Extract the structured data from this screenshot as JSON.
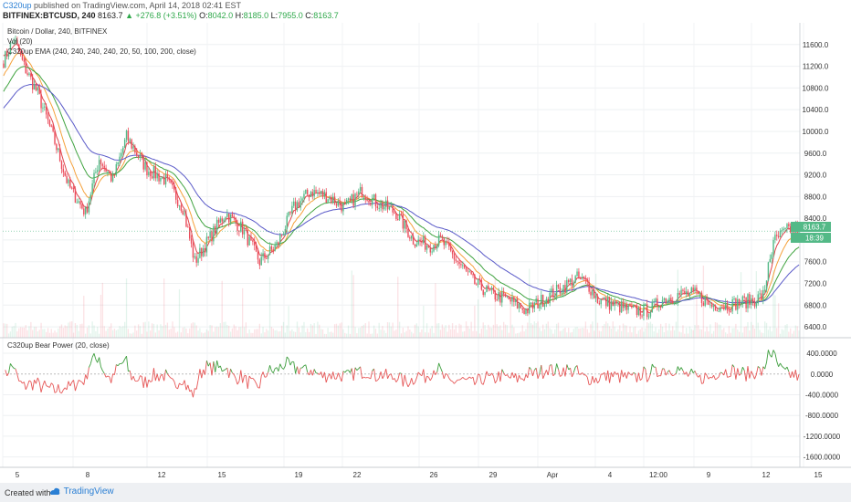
{
  "header": {
    "author": "C320up",
    "published_text": "published on TradingView.com, April 14, 2018 02:41 EST",
    "symbol": "BITFINEX:BTCUSD, 240",
    "last": "8163.7",
    "change": "▲ +276.8 (+3.51%)",
    "o_label": "O:",
    "o": "8042.0",
    "h_label": "H:",
    "h": "8185.0",
    "l_label": "L:",
    "l": "7955.0",
    "c_label": "C:",
    "c": "8163.7"
  },
  "legend": {
    "title": "Bitcoin / Dollar, 240, BITFINEX",
    "volume": "Vol (20)",
    "ema": "C320up EMA (240, 240, 240, 240, 20, 50, 100, 200, close)",
    "indicator": "C320up Bear Power (20, close)"
  },
  "badges": {
    "price": "8163.7",
    "countdown": "18:39"
  },
  "footer": {
    "created": "Created with",
    "brand": "TradingView"
  },
  "colors": {
    "up": "#53b987",
    "down": "#eb4d5c",
    "ema20": "#e0434a",
    "ema50": "#f5a13b",
    "ema100": "#3fa33f",
    "ema200": "#5a5ac8",
    "bear_pos": "#3f9f3f",
    "bear_neg": "#e65757"
  },
  "chart_data": [
    {
      "type": "candlestick",
      "title": "Bitcoin / Dollar, 240, BITFINEX",
      "ylim": [
        6200,
        12000
      ],
      "y_ticks": [
        "11600.0",
        "11200.0",
        "10800.0",
        "10400.0",
        "10000.0",
        "9600.0",
        "9200.0",
        "8800.0",
        "8400.0",
        "8000.0",
        "7600.0",
        "7200.0",
        "6800.0",
        "6400.0"
      ],
      "x_ticks": [
        "5",
        "8",
        "12",
        "15",
        "19",
        "22",
        "26",
        "29",
        "Apr",
        "4",
        "12:00",
        "9",
        "12",
        "15"
      ],
      "close_anchors": [
        [
          0,
          11300
        ],
        [
          6,
          11700
        ],
        [
          12,
          11200
        ],
        [
          20,
          10700
        ],
        [
          28,
          10000
        ],
        [
          38,
          9000
        ],
        [
          48,
          8500
        ],
        [
          56,
          9500
        ],
        [
          64,
          9100
        ],
        [
          72,
          9900
        ],
        [
          84,
          9300
        ],
        [
          95,
          9100
        ],
        [
          105,
          8600
        ],
        [
          112,
          7600
        ],
        [
          122,
          8100
        ],
        [
          130,
          8500
        ],
        [
          140,
          8200
        ],
        [
          150,
          7600
        ],
        [
          160,
          7900
        ],
        [
          170,
          8600
        ],
        [
          180,
          8900
        ],
        [
          190,
          8800
        ],
        [
          200,
          8600
        ],
        [
          210,
          8900
        ],
        [
          218,
          8700
        ],
        [
          230,
          8500
        ],
        [
          240,
          8000
        ],
        [
          250,
          7900
        ],
        [
          256,
          8000
        ],
        [
          266,
          7600
        ],
        [
          276,
          7200
        ],
        [
          286,
          7000
        ],
        [
          296,
          6900
        ],
        [
          306,
          6700
        ],
        [
          316,
          6900
        ],
        [
          326,
          7100
        ],
        [
          336,
          7300
        ],
        [
          342,
          7200
        ],
        [
          348,
          6900
        ],
        [
          358,
          6800
        ],
        [
          368,
          6700
        ],
        [
          378,
          6700
        ],
        [
          386,
          6900
        ],
        [
          396,
          7000
        ],
        [
          406,
          7000
        ],
        [
          414,
          6800
        ],
        [
          424,
          6800
        ],
        [
          432,
          6850
        ],
        [
          440,
          6900
        ],
        [
          446,
          7000
        ],
        [
          448,
          7600
        ],
        [
          452,
          8000
        ],
        [
          460,
          8200
        ],
        [
          466,
          8163.7
        ]
      ],
      "ema_periods": [
        20,
        50,
        100,
        200
      ],
      "ema_seed": {
        "20": 11500,
        "50": 11000,
        "100": 10700,
        "200": 10400
      }
    },
    {
      "type": "line",
      "title": "C320up Bear Power (20, close)",
      "ylim": [
        -1800,
        700
      ],
      "y_ticks": [
        "400.0000",
        "0.0000",
        "-400.0000",
        "-800.0000",
        "-1200.0000",
        "-1600.0000"
      ],
      "y_values": [
        400,
        0,
        -400,
        -800,
        -1200,
        -1600
      ]
    }
  ]
}
